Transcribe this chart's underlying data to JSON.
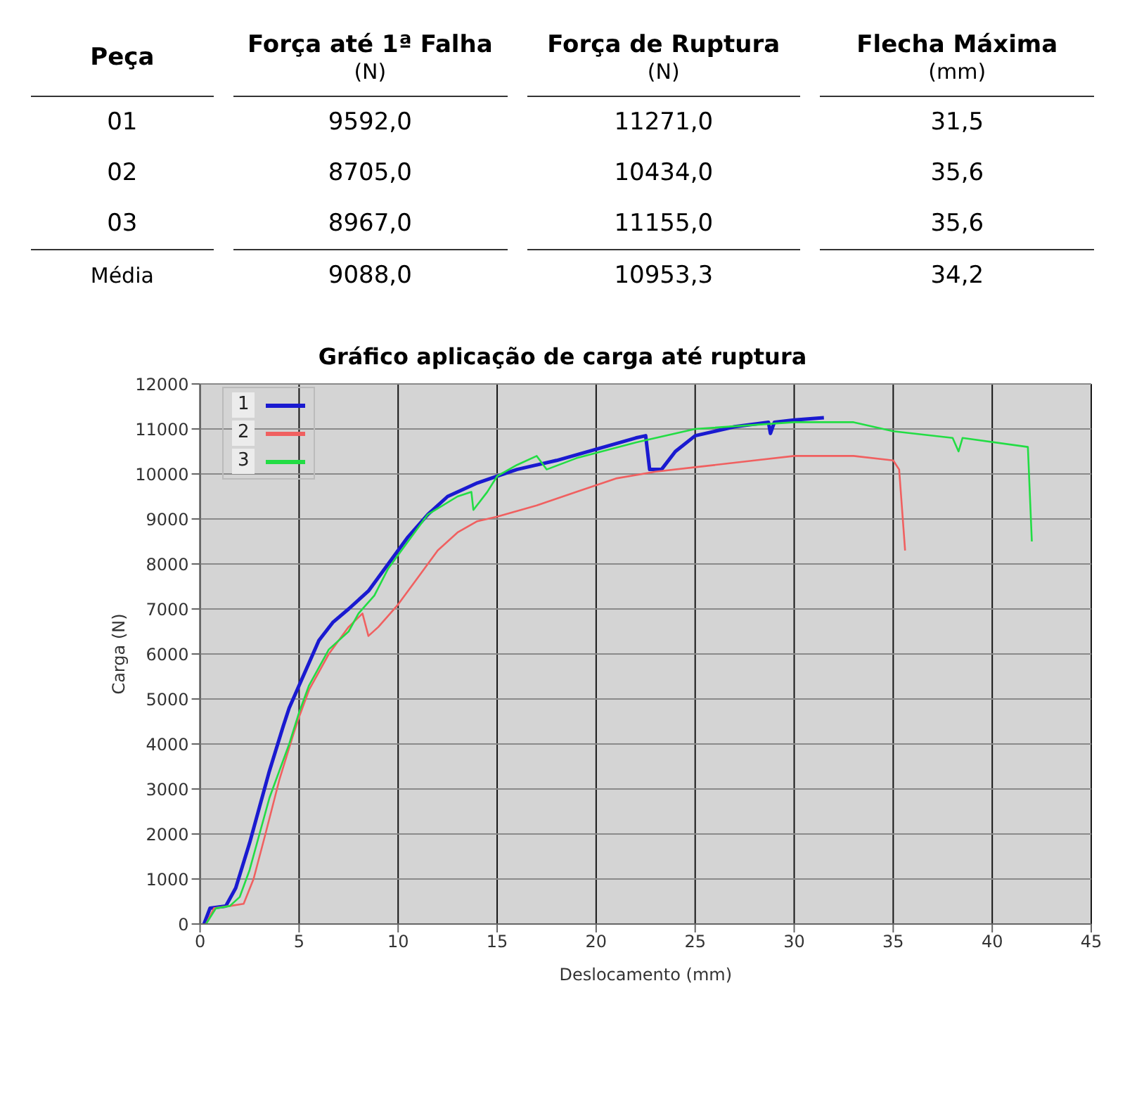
{
  "chart_data": [
    {
      "type": "other",
      "annotations": [
        "Peça",
        "Força até 1ª Falha\n(N)",
        "Força de Ruptura\n(N)",
        "Flecha Máxima\n(mm)",
        "01",
        "9592,0",
        "11271,0",
        "31,5",
        "02",
        "8705,0",
        "10434,0",
        "35,6",
        "03",
        "8967,0",
        "11155,0",
        "35,6",
        "Média",
        "9088,0",
        "10953,3",
        "34,2"
      ]
    },
    {
      "type": "line",
      "title": "Gráfico aplicação de carga até ruptura",
      "xlabel": "Deslocamento (mm)",
      "ylabel": "Carga (N)",
      "xlim": [
        0,
        45
      ],
      "xticks": [
        0,
        5,
        10,
        15,
        20,
        25,
        30,
        35,
        40,
        45
      ],
      "ylim": [
        0,
        12000
      ],
      "yticks": [
        0,
        1000,
        2000,
        3000,
        4000,
        5000,
        6000,
        7000,
        8000,
        9000,
        10000,
        11000,
        12000
      ],
      "grid": true,
      "legend": "top left",
      "marker": "none",
      "line_style": "solid",
      "series": [
        {
          "name": "1",
          "color": "#1a1ad0",
          "x": [
            0.2,
            0.5,
            1.3,
            1.8,
            2.5,
            3,
            3.5,
            4.2,
            4.5,
            5,
            5.5,
            6,
            6.7,
            7.5,
            8.5,
            9.5,
            10.5,
            11.5,
            12.5,
            14,
            15,
            16,
            18,
            20,
            22,
            22.5,
            22.7,
            23.3,
            24,
            25,
            27,
            28.7,
            28.8,
            29,
            30,
            31.5
          ],
          "values": [
            0,
            350,
            400,
            800,
            1800,
            2600,
            3400,
            4400,
            4800,
            5300,
            5800,
            6300,
            6700,
            7000,
            7400,
            8000,
            8600,
            9100,
            9500,
            9800,
            9950,
            10100,
            10300,
            10550,
            10800,
            10850,
            10100,
            10100,
            10500,
            10850,
            11050,
            11150,
            10900,
            11150,
            11200,
            11250
          ]
        },
        {
          "name": "2",
          "color": "#f06060",
          "x": [
            0.3,
            0.7,
            1.5,
            2.2,
            2.7,
            3.3,
            4,
            4.7,
            5,
            5.5,
            6.5,
            7.5,
            8.2,
            8.5,
            9,
            10,
            11,
            12,
            13,
            14,
            15,
            17,
            19,
            21,
            23,
            25,
            28,
            30,
            33,
            35,
            35.3,
            35.6
          ],
          "values": [
            0,
            350,
            400,
            450,
            1000,
            2000,
            3200,
            4200,
            4600,
            5200,
            6000,
            6600,
            6900,
            6400,
            6600,
            7100,
            7700,
            8300,
            8700,
            8950,
            9050,
            9300,
            9600,
            9900,
            10050,
            10150,
            10300,
            10400,
            10400,
            10300,
            10100,
            8300
          ]
        },
        {
          "name": "3",
          "color": "#22dd44",
          "x": [
            0.3,
            0.8,
            1.5,
            2,
            2.5,
            3,
            3.5,
            4.5,
            5,
            5.5,
            6.5,
            7.5,
            8,
            8.8,
            9.5,
            10.5,
            11.5,
            13,
            13.7,
            13.8,
            14.5,
            15,
            16,
            17,
            17.5,
            19,
            22,
            22.5,
            25,
            30,
            33,
            35,
            38,
            38.3,
            38.5,
            41.8,
            42
          ],
          "values": [
            0,
            350,
            400,
            600,
            1200,
            2000,
            2800,
            4000,
            4700,
            5300,
            6100,
            6500,
            6900,
            7300,
            7900,
            8500,
            9100,
            9500,
            9600,
            9200,
            9600,
            9950,
            10200,
            10400,
            10100,
            10350,
            10700,
            10750,
            11000,
            11150,
            11150,
            10950,
            10800,
            10500,
            10800,
            10600,
            8500
          ]
        }
      ]
    }
  ]
}
